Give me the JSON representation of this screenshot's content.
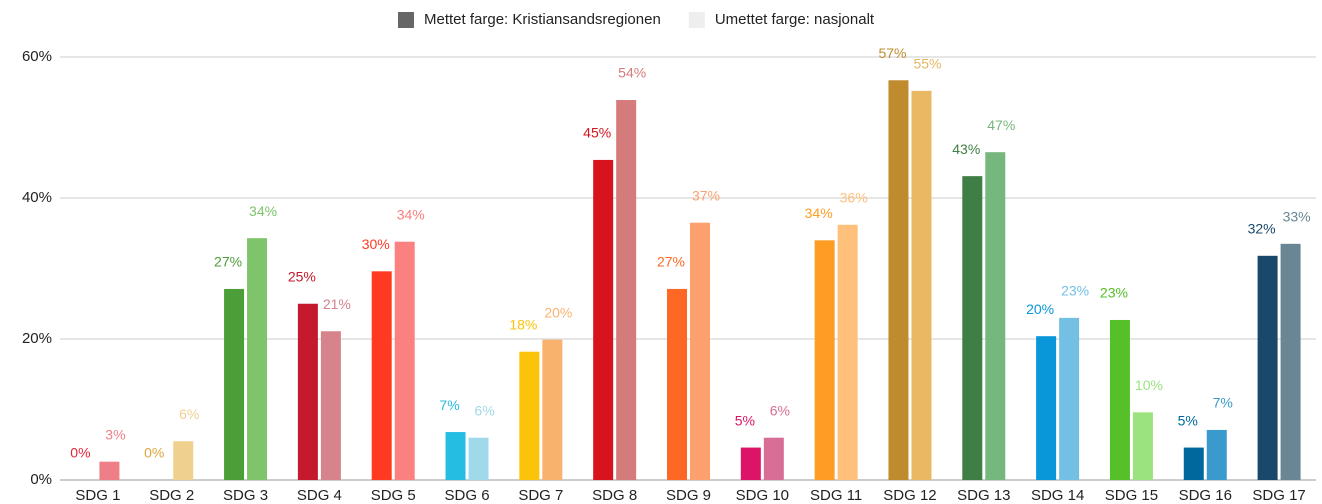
{
  "chart_data": {
    "type": "bar",
    "categories": [
      "SDG 1",
      "SDG 2",
      "SDG 3",
      "SDG 4",
      "SDG 5",
      "SDG 6",
      "SDG 7",
      "SDG 8",
      "SDG 9",
      "SDG 10",
      "SDG 11",
      "SDG 12",
      "SDG 13",
      "SDG 14",
      "SDG 15",
      "SDG 16",
      "SDG 17"
    ],
    "series": [
      {
        "name": "Mettet farge: Kristiansandsregionen",
        "color": "#666666",
        "values": [
          0,
          0,
          27.1,
          25.0,
          29.6,
          6.8,
          18.2,
          45.4,
          27.1,
          4.6,
          34.0,
          56.7,
          43.1,
          20.4,
          22.7,
          4.6,
          31.8
        ],
        "value_labels": [
          "0%",
          "0%",
          "27%",
          "25%",
          "30%",
          "7%",
          "18%",
          "45%",
          "27%",
          "5%",
          "34%",
          "57%",
          "43%",
          "20%",
          "23%",
          "5%",
          "32%"
        ],
        "colors": [
          "#e5243b",
          "#dda63a",
          "#4c9f38",
          "#c5192d",
          "#ff3a21",
          "#26bde2",
          "#fcc30b",
          "#d7131d",
          "#fd6925",
          "#dd1367",
          "#fd9d24",
          "#bf8b2e",
          "#3f7e44",
          "#0a97d9",
          "#56c02b",
          "#00689d",
          "#19486a"
        ]
      },
      {
        "name": "Umettet farge: nasjonalt",
        "color": "#eeeeee",
        "values": [
          2.6,
          5.5,
          34.3,
          21.1,
          33.8,
          6.0,
          19.9,
          53.9,
          36.5,
          6.0,
          36.2,
          55.2,
          46.5,
          23.0,
          9.6,
          7.1,
          33.5
        ],
        "value_labels": [
          "3%",
          "6%",
          "34%",
          "21%",
          "34%",
          "6%",
          "20%",
          "54%",
          "37%",
          "6%",
          "36%",
          "55%",
          "47%",
          "23%",
          "10%",
          "7%",
          "33%"
        ],
        "colors": [
          "#ee7f89",
          "#f0d08f",
          "#7dc46a",
          "#d6838c",
          "#fb8080",
          "#a0d9e9",
          "#f8b26e",
          "#d57b7b",
          "#fca06d",
          "#d86e95",
          "#fec07b",
          "#e8b862",
          "#76b77d",
          "#74c0e5",
          "#9be37e",
          "#3a9acd",
          "#6a8594"
        ]
      }
    ],
    "ylim": [
      0,
      60
    ],
    "yticks": [
      {
        "value": 0,
        "label": "0%"
      },
      {
        "value": 20,
        "label": "20%"
      },
      {
        "value": 40,
        "label": "40%"
      },
      {
        "value": 60,
        "label": "60%"
      }
    ],
    "grid": true,
    "legend": "top"
  }
}
